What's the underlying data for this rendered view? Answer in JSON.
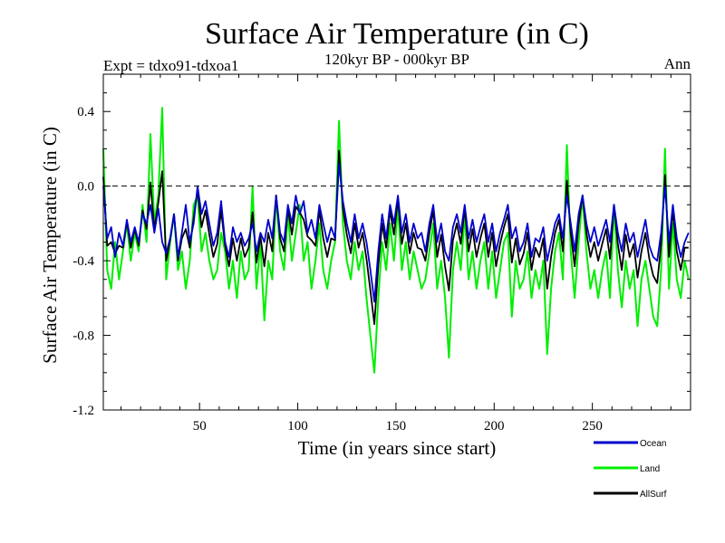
{
  "chart_data": {
    "type": "line",
    "title": "Surface Air Temperature (in C)",
    "subtitle": "120kyr BP - 000kyr BP",
    "left_label": "Expt = tdxo91-tdxoa1",
    "right_label": "Ann",
    "xlabel": "Time (in years since start)",
    "ylabel": "Surface Air Temperature (in C)",
    "xlim": [
      1,
      300
    ],
    "ylim": [
      -1.2,
      0.6
    ],
    "x_ticks": [
      50,
      100,
      150,
      200,
      250
    ],
    "x_tick_labels": [
      "50",
      "100",
      "150",
      "200",
      "250"
    ],
    "y_ticks": [
      -1.2,
      -0.8,
      -0.4,
      0.0,
      0.4
    ],
    "y_tick_labels": [
      "-1.2",
      "-0.8",
      "-0.4",
      "0.0",
      "0.4"
    ],
    "reference_line": 0.0,
    "x": [
      1,
      3,
      5,
      7,
      9,
      11,
      13,
      15,
      17,
      19,
      21,
      23,
      25,
      27,
      29,
      31,
      33,
      35,
      37,
      39,
      41,
      43,
      45,
      47,
      49,
      51,
      53,
      55,
      57,
      59,
      61,
      63,
      65,
      67,
      69,
      71,
      73,
      75,
      77,
      79,
      81,
      83,
      85,
      87,
      89,
      91,
      93,
      95,
      97,
      99,
      101,
      103,
      105,
      107,
      109,
      111,
      113,
      115,
      117,
      119,
      121,
      123,
      125,
      127,
      129,
      131,
      133,
      135,
      137,
      139,
      141,
      143,
      145,
      147,
      149,
      151,
      153,
      155,
      157,
      159,
      161,
      163,
      165,
      167,
      169,
      171,
      173,
      175,
      177,
      179,
      181,
      183,
      185,
      187,
      189,
      191,
      193,
      195,
      197,
      199,
      201,
      203,
      205,
      207,
      209,
      211,
      213,
      215,
      217,
      219,
      221,
      223,
      225,
      227,
      229,
      231,
      233,
      235,
      237,
      239,
      241,
      243,
      245,
      247,
      249,
      251,
      253,
      255,
      257,
      259,
      261,
      263,
      265,
      267,
      269,
      271,
      273,
      275,
      277,
      279,
      281,
      283,
      285,
      287,
      289,
      291,
      293,
      295,
      297,
      299
    ],
    "series": [
      {
        "name": "Ocean",
        "color": "#0000cc",
        "values": [
          0.0,
          -0.28,
          -0.22,
          -0.38,
          -0.25,
          -0.32,
          -0.18,
          -0.3,
          -0.22,
          -0.3,
          -0.15,
          -0.2,
          -0.1,
          -0.25,
          -0.12,
          -0.3,
          -0.36,
          -0.28,
          -0.15,
          -0.38,
          -0.25,
          -0.1,
          -0.3,
          -0.2,
          0.0,
          -0.15,
          -0.08,
          -0.2,
          -0.32,
          -0.25,
          -0.08,
          -0.3,
          -0.38,
          -0.22,
          -0.3,
          -0.25,
          -0.32,
          -0.28,
          -0.2,
          -0.35,
          -0.25,
          -0.3,
          -0.18,
          -0.28,
          -0.05,
          -0.25,
          -0.3,
          -0.1,
          -0.2,
          -0.05,
          -0.15,
          -0.08,
          -0.25,
          -0.18,
          -0.28,
          -0.1,
          -0.2,
          -0.3,
          -0.22,
          -0.28,
          0.12,
          -0.08,
          -0.2,
          -0.3,
          -0.15,
          -0.28,
          -0.2,
          -0.3,
          -0.45,
          -0.62,
          -0.35,
          -0.15,
          -0.28,
          -0.1,
          -0.2,
          -0.05,
          -0.25,
          -0.15,
          -0.3,
          -0.2,
          -0.28,
          -0.25,
          -0.35,
          -0.2,
          -0.1,
          -0.3,
          -0.2,
          -0.35,
          -0.4,
          -0.22,
          -0.15,
          -0.25,
          -0.1,
          -0.28,
          -0.18,
          -0.3,
          -0.22,
          -0.15,
          -0.3,
          -0.2,
          -0.35,
          -0.25,
          -0.18,
          -0.1,
          -0.28,
          -0.22,
          -0.35,
          -0.3,
          -0.2,
          -0.38,
          -0.28,
          -0.3,
          -0.22,
          -0.4,
          -0.3,
          -0.2,
          -0.15,
          -0.28,
          -0.05,
          -0.2,
          -0.35,
          -0.15,
          -0.05,
          -0.2,
          -0.3,
          -0.22,
          -0.32,
          -0.25,
          -0.18,
          -0.3,
          -0.1,
          -0.25,
          -0.35,
          -0.2,
          -0.3,
          -0.25,
          -0.38,
          -0.28,
          -0.18,
          -0.32,
          -0.38,
          -0.4,
          -0.25,
          0.0,
          -0.3,
          -0.1,
          -0.28,
          -0.38,
          -0.3,
          -0.25
        ]
      },
      {
        "name": "Land",
        "color": "#00ee00",
        "values": [
          0.2,
          -0.45,
          -0.55,
          -0.3,
          -0.5,
          -0.35,
          -0.2,
          -0.4,
          -0.25,
          -0.35,
          -0.1,
          -0.3,
          0.28,
          -0.2,
          -0.05,
          0.42,
          -0.5,
          -0.3,
          -0.15,
          -0.45,
          -0.35,
          -0.55,
          -0.4,
          -0.1,
          -0.05,
          -0.35,
          -0.25,
          -0.4,
          -0.5,
          -0.45,
          -0.25,
          -0.35,
          -0.55,
          -0.4,
          -0.6,
          -0.35,
          -0.5,
          -0.45,
          0.0,
          -0.55,
          -0.3,
          -0.72,
          -0.4,
          -0.5,
          -0.05,
          -0.35,
          -0.45,
          -0.15,
          -0.4,
          -0.25,
          -0.1,
          -0.4,
          -0.3,
          -0.55,
          -0.4,
          -0.2,
          -0.45,
          -0.55,
          -0.4,
          -0.3,
          0.35,
          -0.2,
          -0.4,
          -0.5,
          -0.3,
          -0.45,
          -0.35,
          -0.6,
          -0.8,
          -1.0,
          -0.6,
          -0.3,
          -0.45,
          -0.2,
          -0.4,
          -0.1,
          -0.45,
          -0.3,
          -0.5,
          -0.35,
          -0.45,
          -0.55,
          -0.5,
          -0.35,
          -0.2,
          -0.55,
          -0.4,
          -0.6,
          -0.92,
          -0.45,
          -0.3,
          -0.45,
          -0.15,
          -0.5,
          -0.35,
          -0.55,
          -0.4,
          -0.3,
          -0.55,
          -0.35,
          -0.6,
          -0.45,
          -0.3,
          -0.25,
          -0.7,
          -0.4,
          -0.55,
          -0.5,
          -0.35,
          -0.6,
          -0.45,
          -0.55,
          -0.4,
          -0.9,
          -0.55,
          -0.35,
          -0.25,
          -0.5,
          0.22,
          -0.35,
          -0.6,
          -0.3,
          -0.05,
          -0.35,
          -0.55,
          -0.45,
          -0.6,
          -0.45,
          -0.35,
          -0.6,
          -0.1,
          -0.45,
          -0.65,
          -0.4,
          -0.55,
          -0.45,
          -0.75,
          -0.5,
          -0.4,
          -0.55,
          -0.7,
          -0.75,
          -0.45,
          0.2,
          -0.55,
          -0.2,
          -0.5,
          -0.6,
          -0.4,
          -0.5
        ]
      },
      {
        "name": "AllSurf",
        "color": "#000000",
        "values": [
          0.05,
          -0.32,
          -0.3,
          -0.36,
          -0.32,
          -0.33,
          -0.19,
          -0.33,
          -0.23,
          -0.32,
          -0.13,
          -0.23,
          0.02,
          -0.23,
          -0.09,
          0.08,
          -0.4,
          -0.29,
          -0.15,
          -0.4,
          -0.28,
          -0.23,
          -0.33,
          -0.17,
          -0.02,
          -0.22,
          -0.13,
          -0.26,
          -0.38,
          -0.31,
          -0.13,
          -0.32,
          -0.43,
          -0.28,
          -0.4,
          -0.28,
          -0.38,
          -0.33,
          -0.14,
          -0.41,
          -0.27,
          -0.43,
          -0.25,
          -0.35,
          -0.05,
          -0.28,
          -0.35,
          -0.12,
          -0.26,
          -0.11,
          -0.14,
          -0.18,
          -0.27,
          -0.29,
          -0.32,
          -0.13,
          -0.28,
          -0.38,
          -0.28,
          -0.29,
          0.19,
          -0.12,
          -0.26,
          -0.36,
          -0.2,
          -0.33,
          -0.25,
          -0.39,
          -0.56,
          -0.74,
          -0.43,
          -0.2,
          -0.33,
          -0.13,
          -0.26,
          -0.07,
          -0.31,
          -0.2,
          -0.36,
          -0.25,
          -0.33,
          -0.34,
          -0.4,
          -0.25,
          -0.13,
          -0.38,
          -0.26,
          -0.43,
          -0.56,
          -0.29,
          -0.2,
          -0.31,
          -0.12,
          -0.35,
          -0.23,
          -0.38,
          -0.28,
          -0.2,
          -0.38,
          -0.25,
          -0.43,
          -0.31,
          -0.22,
          -0.15,
          -0.41,
          -0.28,
          -0.42,
          -0.36,
          -0.25,
          -0.45,
          -0.33,
          -0.38,
          -0.28,
          -0.55,
          -0.38,
          -0.25,
          -0.18,
          -0.35,
          0.03,
          -0.25,
          -0.43,
          -0.2,
          -0.05,
          -0.25,
          -0.38,
          -0.3,
          -0.4,
          -0.31,
          -0.23,
          -0.39,
          -0.1,
          -0.31,
          -0.45,
          -0.26,
          -0.38,
          -0.31,
          -0.49,
          -0.35,
          -0.25,
          -0.39,
          -0.48,
          -0.52,
          -0.31,
          0.06,
          -0.38,
          -0.13,
          -0.35,
          -0.45,
          -0.33,
          -0.33
        ]
      }
    ]
  }
}
